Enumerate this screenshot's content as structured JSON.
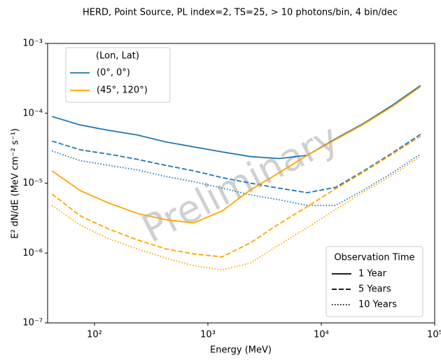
{
  "chart_data": {
    "type": "line",
    "title": "HERD, Point Source, PL index=2, TS=25, > 10 photons/bin, 4 bin/dec",
    "x_label": "Energy (MeV)",
    "y_label": "E² dN/dE (MeV cm⁻² s⁻¹)",
    "watermark": "Preliminary",
    "log_x": true,
    "log_y": true,
    "xlim": [
      38.6,
      100000
    ],
    "ylim": [
      1e-07,
      0.001
    ],
    "xticks": [
      {
        "value": 100,
        "label": "10²"
      },
      {
        "value": 1000,
        "label": "10³"
      },
      {
        "value": 10000,
        "label": "10⁴"
      },
      {
        "value": 100000,
        "label": "10⁵"
      }
    ],
    "yticks": [
      {
        "value": 1e-07,
        "label": "10⁻⁷"
      },
      {
        "value": 1e-06,
        "label": "10⁻⁶"
      },
      {
        "value": 1e-05,
        "label": "10⁻⁵"
      },
      {
        "value": 0.0001,
        "label": "10⁻⁴"
      },
      {
        "value": 0.001,
        "label": "10⁻³"
      }
    ],
    "x": [
      42.17,
      75,
      133.4,
      237.1,
      421.7,
      749.9,
      1334,
      2371,
      4217,
      7499,
      13335,
      23714,
      42170,
      74989
    ],
    "color_legend_title": "(Lon, Lat)",
    "color_legend_corner": "upper left",
    "style_legend_title": "Observation Time",
    "style_legend_corner": "lower right",
    "groups": [
      {
        "name": "(0°, 0°)",
        "color": "#1f77b4",
        "series": [
          {
            "name": "1 Year",
            "dash": "solid",
            "values": [
              9e-05,
              6.8e-05,
              5.7e-05,
              4.9e-05,
              3.9e-05,
              3.3e-05,
              2.8e-05,
              2.4e-05,
              2.25e-05,
              2.5e-05,
              4.3e-05,
              7.2e-05,
              0.00013,
              0.00025
            ]
          },
          {
            "name": "5 Years",
            "dash": "dashed",
            "values": [
              4e-05,
              3e-05,
              2.6e-05,
              2.2e-05,
              1.8e-05,
              1.5e-05,
              1.2e-05,
              1e-05,
              8.5e-06,
              7.3e-06,
              8.7e-06,
              1.5e-05,
              2.7e-05,
              5e-05
            ]
          },
          {
            "name": "10 Years",
            "dash": "dotted",
            "values": [
              2.9e-05,
              2.1e-05,
              1.8e-05,
              1.55e-05,
              1.25e-05,
              1.05e-05,
              8.5e-06,
              6.8e-06,
              5.8e-06,
              4.8e-06,
              4.8e-06,
              8e-06,
              1.4e-05,
              2.6e-05
            ]
          }
        ]
      },
      {
        "name": "(45°, 120°)",
        "color": "#ffa500",
        "series": [
          {
            "name": "1 Year",
            "dash": "solid",
            "values": [
              1.5e-05,
              7.8e-06,
              5.2e-06,
              3.7e-06,
              3e-06,
              2.7e-06,
              4e-06,
              8e-06,
              1.4e-05,
              2.5e-05,
              4.2e-05,
              7e-05,
              0.000125,
              0.00024
            ]
          },
          {
            "name": "5 Years",
            "dash": "dashed",
            "values": [
              7e-06,
              3.4e-06,
              2.2e-06,
              1.55e-06,
              1.15e-06,
              9.7e-07,
              8.8e-07,
              1.4e-06,
              2.6e-06,
              4.6e-06,
              8.3e-06,
              1.45e-05,
              2.6e-05,
              4.7e-05
            ]
          },
          {
            "name": "10 Years",
            "dash": "dotted",
            "values": [
              4.8e-06,
              2.5e-06,
              1.6e-06,
              1.15e-06,
              8.5e-07,
              6.6e-07,
              5.7e-07,
              7.2e-07,
              1.3e-06,
              2.3e-06,
              4.2e-06,
              7.5e-06,
              1.3e-05,
              2.4e-05
            ]
          }
        ]
      }
    ]
  }
}
